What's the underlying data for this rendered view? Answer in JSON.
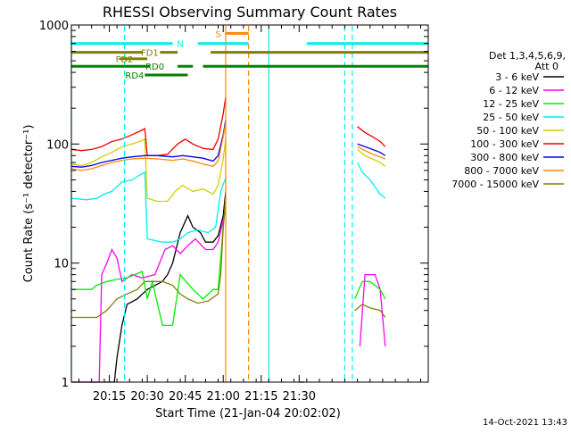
{
  "chart_data": {
    "type": "line",
    "title": "RHESSI Observing Summary Count Rates",
    "xlabel": "Start Time (21-Jan-04 20:02:02)",
    "ylabel": "Count Rate (s⁻¹ detector⁻¹)",
    "x_units": "minutes after 20:00 UT",
    "xlim": [
      2,
      143
    ],
    "ylim": [
      1,
      1000
    ],
    "yscale": "log",
    "x_ticks": [
      {
        "value": 17,
        "label": "20:15"
      },
      {
        "value": 32,
        "label": "20:30"
      },
      {
        "value": 47,
        "label": "20:45"
      },
      {
        "value": 62,
        "label": "21:00"
      },
      {
        "value": 77,
        "label": "21:15"
      },
      {
        "value": 92,
        "label": "21:30"
      }
    ],
    "y_ticks": [
      {
        "value": 1,
        "label": "1"
      },
      {
        "value": 10,
        "label": "10"
      },
      {
        "value": 100,
        "label": "100"
      },
      {
        "value": 1000,
        "label": "1000"
      }
    ],
    "legend": {
      "header": [
        "Det 1,3,4,5,6,9,",
        "Att 0"
      ],
      "placement": "right",
      "items": [
        {
          "label": "3 - 6 keV",
          "color": "#000000"
        },
        {
          "label": "6 - 12 keV",
          "color": "#ff00ff"
        },
        {
          "label": "12 - 25 keV",
          "color": "#00ee00"
        },
        {
          "label": "25 - 50 keV",
          "color": "#00eeee"
        },
        {
          "label": "50 - 100 keV",
          "color": "#d0d000"
        },
        {
          "label": "100 - 300 keV",
          "color": "#ee0000"
        },
        {
          "label": "300 - 800 keV",
          "color": "#0000ee"
        },
        {
          "label": "800 - 7000 keV",
          "color": "#ff8800"
        },
        {
          "label": "7000 - 15000 keV",
          "color": "#808000"
        }
      ]
    },
    "series": [
      {
        "name": "3 - 6 keV",
        "color": "#000000",
        "segments": [
          [
            [
              2,
              1
            ],
            [
              19,
              1
            ],
            [
              20,
              1.6
            ],
            [
              22,
              3
            ],
            [
              24,
              4.5
            ],
            [
              28,
              5
            ],
            [
              32,
              6
            ],
            [
              38,
              7
            ],
            [
              40,
              8
            ],
            [
              42,
              10
            ],
            [
              45,
              18
            ],
            [
              48,
              25
            ],
            [
              50,
              20
            ],
            [
              53,
              18
            ],
            [
              55,
              15
            ],
            [
              58,
              15
            ],
            [
              60,
              17
            ],
            [
              62,
              25
            ],
            [
              63,
              40
            ]
          ],
          [
            [
              92,
              1
            ],
            [
              94,
              1
            ]
          ]
        ]
      },
      {
        "name": "6 - 12 keV",
        "color": "#ff00ff",
        "segments": [
          [
            [
              2,
              1
            ],
            [
              13,
              1
            ],
            [
              14,
              8
            ],
            [
              16,
              10
            ],
            [
              18,
              13
            ],
            [
              20,
              11
            ],
            [
              22,
              7
            ],
            [
              26,
              8
            ],
            [
              30,
              7.5
            ],
            [
              35,
              8
            ],
            [
              39,
              13
            ],
            [
              42,
              14
            ],
            [
              45,
              12
            ],
            [
              48,
              14
            ],
            [
              51,
              16
            ],
            [
              55,
              13
            ],
            [
              58,
              13
            ],
            [
              60,
              15
            ],
            [
              63,
              28
            ]
          ],
          [
            [
              116,
              2
            ],
            [
              118,
              8
            ],
            [
              122,
              8
            ],
            [
              124,
              6
            ],
            [
              126,
              2
            ]
          ]
        ]
      },
      {
        "name": "12 - 25 keV",
        "color": "#00ee00",
        "segments": [
          [
            [
              2,
              6
            ],
            [
              10,
              6
            ],
            [
              12,
              6.5
            ],
            [
              16,
              7
            ],
            [
              20,
              7.3
            ],
            [
              24,
              7.5
            ],
            [
              30,
              8.5
            ],
            [
              32,
              5
            ],
            [
              34,
              7
            ],
            [
              38,
              3
            ],
            [
              42,
              3
            ],
            [
              45,
              8
            ],
            [
              50,
              6
            ],
            [
              54,
              5
            ],
            [
              58,
              6
            ],
            [
              60,
              6
            ],
            [
              62,
              20
            ],
            [
              63,
              35
            ]
          ],
          [
            [
              114,
              5
            ],
            [
              117,
              7
            ],
            [
              120,
              7
            ],
            [
              124,
              6
            ],
            [
              126,
              5
            ]
          ]
        ]
      },
      {
        "name": "25 - 50 keV",
        "color": "#00eeee",
        "segments": [
          [
            [
              2,
              35
            ],
            [
              8,
              34
            ],
            [
              12,
              35
            ],
            [
              15,
              38
            ],
            [
              18,
              40
            ],
            [
              22,
              48
            ],
            [
              26,
              50
            ],
            [
              29,
              55
            ],
            [
              31,
              58
            ],
            [
              32,
              16
            ],
            [
              38,
              15
            ],
            [
              42,
              15
            ],
            [
              45,
              16
            ],
            [
              48,
              18
            ],
            [
              52,
              19
            ],
            [
              56,
              18
            ],
            [
              59,
              20
            ],
            [
              61,
              40
            ],
            [
              63,
              52
            ]
          ],
          [
            [
              115,
              70
            ],
            [
              117,
              58
            ],
            [
              120,
              50
            ],
            [
              124,
              38
            ],
            [
              126,
              35
            ]
          ]
        ]
      },
      {
        "name": "50 - 100 keV",
        "color": "#d0d000",
        "segments": [
          [
            [
              2,
              68
            ],
            [
              6,
              66
            ],
            [
              10,
              70
            ],
            [
              14,
              78
            ],
            [
              18,
              85
            ],
            [
              22,
              95
            ],
            [
              26,
              100
            ],
            [
              29,
              105
            ],
            [
              31,
              110
            ],
            [
              32,
              35
            ],
            [
              36,
              33
            ],
            [
              40,
              33
            ],
            [
              43,
              40
            ],
            [
              46,
              45
            ],
            [
              50,
              40
            ],
            [
              54,
              42
            ],
            [
              58,
              38
            ],
            [
              60,
              45
            ],
            [
              62,
              75
            ],
            [
              63,
              110
            ]
          ],
          [
            [
              115,
              90
            ],
            [
              118,
              80
            ],
            [
              121,
              75
            ],
            [
              124,
              70
            ],
            [
              126,
              65
            ]
          ]
        ]
      },
      {
        "name": "100 - 300 keV",
        "color": "#ee0000",
        "segments": [
          [
            [
              2,
              90
            ],
            [
              6,
              88
            ],
            [
              10,
              90
            ],
            [
              14,
              95
            ],
            [
              18,
              105
            ],
            [
              22,
              110
            ],
            [
              26,
              120
            ],
            [
              29,
              128
            ],
            [
              31,
              135
            ],
            [
              32,
              80
            ],
            [
              36,
              80
            ],
            [
              40,
              82
            ],
            [
              44,
              100
            ],
            [
              47,
              110
            ],
            [
              50,
              100
            ],
            [
              54,
              92
            ],
            [
              58,
              90
            ],
            [
              60,
              110
            ],
            [
              62,
              180
            ],
            [
              63,
              250
            ]
          ],
          [
            [
              115,
              140
            ],
            [
              118,
              125
            ],
            [
              121,
              115
            ],
            [
              124,
              105
            ],
            [
              126,
              95
            ]
          ]
        ]
      },
      {
        "name": "300 - 800 keV",
        "color": "#0000ee",
        "segments": [
          [
            [
              2,
              65
            ],
            [
              6,
              64
            ],
            [
              10,
              66
            ],
            [
              14,
              70
            ],
            [
              18,
              73
            ],
            [
              22,
              76
            ],
            [
              26,
              78
            ],
            [
              31,
              80
            ],
            [
              36,
              80
            ],
            [
              42,
              78
            ],
            [
              46,
              80
            ],
            [
              50,
              78
            ],
            [
              54,
              76
            ],
            [
              58,
              72
            ],
            [
              60,
              80
            ],
            [
              62,
              120
            ],
            [
              63,
              160
            ]
          ],
          [
            [
              115,
              100
            ],
            [
              118,
              95
            ],
            [
              121,
              90
            ],
            [
              124,
              85
            ],
            [
              126,
              80
            ]
          ]
        ]
      },
      {
        "name": "800 - 7000 keV",
        "color": "#ff8800",
        "segments": [
          [
            [
              2,
              62
            ],
            [
              6,
              60
            ],
            [
              10,
              62
            ],
            [
              14,
              66
            ],
            [
              18,
              70
            ],
            [
              22,
              73
            ],
            [
              26,
              75
            ],
            [
              31,
              76
            ],
            [
              36,
              75
            ],
            [
              42,
              73
            ],
            [
              46,
              75
            ],
            [
              50,
              72
            ],
            [
              54,
              68
            ],
            [
              58,
              65
            ],
            [
              60,
              72
            ],
            [
              62,
              115
            ],
            [
              63,
              150
            ]
          ],
          [
            [
              115,
              95
            ],
            [
              118,
              88
            ],
            [
              121,
              82
            ],
            [
              124,
              78
            ],
            [
              126,
              75
            ]
          ]
        ]
      },
      {
        "name": "7000 - 15000 keV",
        "color": "#808000",
        "segments": [
          [
            [
              2,
              3.5
            ],
            [
              8,
              3.5
            ],
            [
              12,
              3.5
            ],
            [
              16,
              4
            ],
            [
              20,
              5
            ],
            [
              24,
              5.5
            ],
            [
              28,
              6
            ],
            [
              31,
              7
            ],
            [
              34,
              7
            ],
            [
              38,
              7
            ],
            [
              42,
              6.5
            ],
            [
              45,
              5.5
            ],
            [
              48,
              5
            ],
            [
              52,
              4.6
            ],
            [
              56,
              4.8
            ],
            [
              60,
              5.5
            ],
            [
              61,
              8
            ],
            [
              62,
              20
            ],
            [
              63,
              35
            ]
          ],
          [
            [
              114,
              4
            ],
            [
              117,
              4.5
            ],
            [
              120,
              4.2
            ],
            [
              124,
              4
            ],
            [
              126,
              3.5
            ]
          ]
        ]
      }
    ],
    "vertical_markers": [
      {
        "x": 2,
        "color": "#00eeee",
        "style": "solid"
      },
      {
        "x": 23,
        "color": "#00eeee",
        "style": "dashed"
      },
      {
        "x": 80,
        "color": "#00eeee",
        "style": "solid"
      },
      {
        "x": 110,
        "color": "#00eeee",
        "style": "dashed"
      },
      {
        "x": 113,
        "color": "#00eeee",
        "style": "dashed"
      },
      {
        "x": 63,
        "color": "#ff8800",
        "style": "solid"
      },
      {
        "x": 72,
        "color": "#ff8800",
        "style": "dashed"
      }
    ],
    "flag_bars": [
      {
        "label": "N",
        "color": "#00eeee",
        "y": 700,
        "label_x": 45,
        "segments": [
          [
            2,
            42
          ],
          [
            52,
            72
          ],
          [
            95,
            143
          ]
        ]
      },
      {
        "label": "S",
        "color": "#ff8800",
        "y": 850,
        "label_x": 60,
        "segments": [
          [
            63,
            72
          ]
        ]
      },
      {
        "label": "FD1",
        "color": "#808000",
        "y": 590,
        "label_x": 33,
        "segments": [
          [
            2,
            30
          ],
          [
            37,
            44
          ],
          [
            57,
            143
          ]
        ]
      },
      {
        "label": "FD2",
        "color": "#808000",
        "y": 520,
        "label_x": 23,
        "segments": [
          [
            21,
            32
          ]
        ]
      },
      {
        "label": "RD0",
        "color": "#008000",
        "y": 450,
        "label_x": 35,
        "segments": [
          [
            2,
            33
          ],
          [
            44,
            50
          ],
          [
            54,
            143
          ]
        ]
      },
      {
        "label": "RD4",
        "color": "#008000",
        "y": 380,
        "label_x": 27,
        "segments": [
          [
            31,
            48
          ]
        ]
      }
    ]
  },
  "footer": {
    "date": "14-Oct-2021 13:43"
  }
}
